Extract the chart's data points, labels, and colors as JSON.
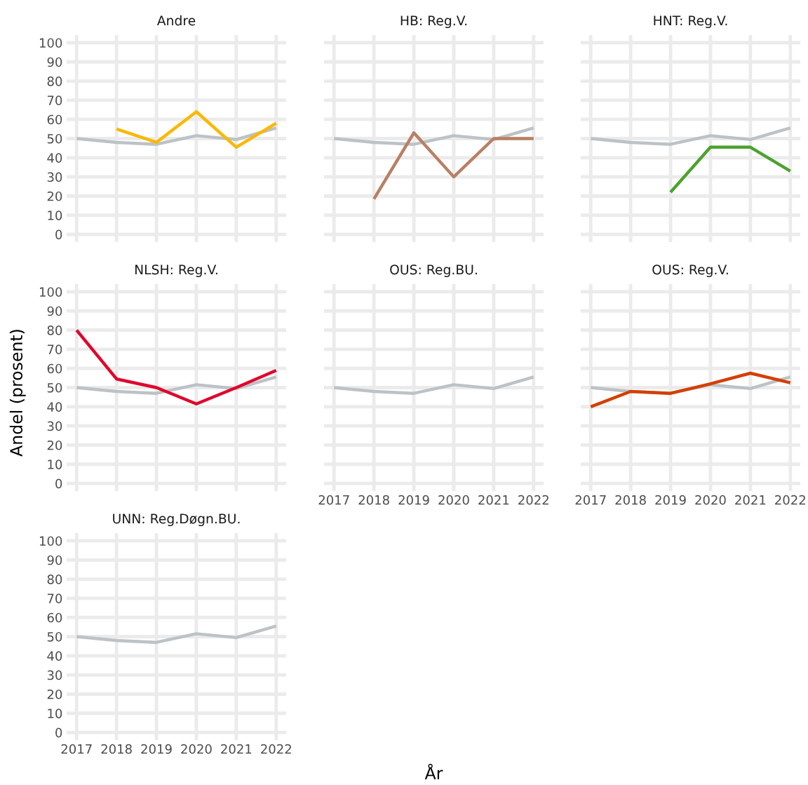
{
  "chart_data": [
    {
      "type": "line",
      "title": "Andre",
      "x": [
        2017,
        2018,
        2019,
        2020,
        2021,
        2022
      ],
      "xlim": [
        2016.75,
        2022.25
      ],
      "xticks": [
        2017,
        2018,
        2019,
        2020,
        2021,
        2022
      ],
      "ylim": [
        -4,
        104
      ],
      "yticks": [
        0,
        10,
        20,
        30,
        40,
        50,
        60,
        70,
        80,
        90,
        100
      ],
      "grid": true,
      "tick_labels": "y",
      "series": [
        {
          "color": "#bcc2c6",
          "values": [
            50,
            48,
            47,
            51.5,
            49.5,
            55.5
          ]
        },
        {
          "color": "#fbb800",
          "values": [
            null,
            55,
            48,
            64,
            45.5,
            58
          ]
        }
      ]
    },
    {
      "type": "line",
      "title": "HB: Reg.V.",
      "x": [
        2017,
        2018,
        2019,
        2020,
        2021,
        2022
      ],
      "xlim": [
        2016.75,
        2022.25
      ],
      "xticks": [
        2017,
        2018,
        2019,
        2020,
        2021,
        2022
      ],
      "ylim": [
        -4,
        104
      ],
      "yticks": [
        0,
        10,
        20,
        30,
        40,
        50,
        60,
        70,
        80,
        90,
        100
      ],
      "grid": true,
      "tick_labels": false,
      "series": [
        {
          "color": "#bcc2c6",
          "values": [
            50,
            48,
            47,
            51.5,
            49.5,
            55.5
          ]
        },
        {
          "color": "#b97f64",
          "values": [
            null,
            18.5,
            53,
            30,
            50,
            50
          ]
        }
      ]
    },
    {
      "type": "line",
      "title": "HNT: Reg.V.",
      "x": [
        2017,
        2018,
        2019,
        2020,
        2021,
        2022
      ],
      "xlim": [
        2016.75,
        2022.25
      ],
      "xticks": [
        2017,
        2018,
        2019,
        2020,
        2021,
        2022
      ],
      "ylim": [
        -4,
        104
      ],
      "yticks": [
        0,
        10,
        20,
        30,
        40,
        50,
        60,
        70,
        80,
        90,
        100
      ],
      "grid": true,
      "tick_labels": false,
      "series": [
        {
          "color": "#bcc2c6",
          "values": [
            50,
            48,
            47,
            51.5,
            49.5,
            55.5
          ]
        },
        {
          "color": "#4ca22e",
          "values": [
            null,
            null,
            22,
            45.5,
            45.5,
            33
          ]
        }
      ]
    },
    {
      "type": "line",
      "title": "NLSH: Reg.V.",
      "ylabel": "Andel (prosent)",
      "x": [
        2017,
        2018,
        2019,
        2020,
        2021,
        2022
      ],
      "xlim": [
        2016.75,
        2022.25
      ],
      "xticks": [
        2017,
        2018,
        2019,
        2020,
        2021,
        2022
      ],
      "ylim": [
        -4,
        104
      ],
      "yticks": [
        0,
        10,
        20,
        30,
        40,
        50,
        60,
        70,
        80,
        90,
        100
      ],
      "grid": true,
      "tick_labels": "y",
      "series": [
        {
          "color": "#bcc2c6",
          "values": [
            50,
            48,
            47,
            51.5,
            49.5,
            55.5
          ]
        },
        {
          "color": "#e0062d",
          "values": [
            80,
            54.5,
            50,
            41.5,
            50,
            59
          ]
        }
      ]
    },
    {
      "type": "line",
      "title": "OUS: Reg.BU.",
      "xlabel": "År",
      "x": [
        2017,
        2018,
        2019,
        2020,
        2021,
        2022
      ],
      "xlim": [
        2016.75,
        2022.25
      ],
      "xticks": [
        2017,
        2018,
        2019,
        2020,
        2021,
        2022
      ],
      "ylim": [
        -4,
        104
      ],
      "yticks": [
        0,
        10,
        20,
        30,
        40,
        50,
        60,
        70,
        80,
        90,
        100
      ],
      "grid": true,
      "tick_labels": "x",
      "series": [
        {
          "color": "#bcc2c6",
          "values": [
            50,
            48,
            47,
            51.5,
            49.5,
            55.5
          ]
        }
      ]
    },
    {
      "type": "line",
      "title": "OUS: Reg.V.",
      "x": [
        2017,
        2018,
        2019,
        2020,
        2021,
        2022
      ],
      "xlim": [
        2016.75,
        2022.25
      ],
      "xticks": [
        2017,
        2018,
        2019,
        2020,
        2021,
        2022
      ],
      "ylim": [
        -4,
        104
      ],
      "yticks": [
        0,
        10,
        20,
        30,
        40,
        50,
        60,
        70,
        80,
        90,
        100
      ],
      "grid": true,
      "tick_labels": "x",
      "series": [
        {
          "color": "#bcc2c6",
          "values": [
            50,
            48,
            47,
            51.5,
            49.5,
            55.5
          ]
        },
        {
          "color": "#d43f00",
          "values": [
            40,
            48,
            47,
            52,
            57.5,
            52.5
          ]
        }
      ]
    },
    {
      "type": "line",
      "title": "UNN: Reg.Døgn.BU.",
      "x": [
        2017,
        2018,
        2019,
        2020,
        2021,
        2022
      ],
      "xlim": [
        2016.75,
        2022.25
      ],
      "xticks": [
        2017,
        2018,
        2019,
        2020,
        2021,
        2022
      ],
      "ylim": [
        -4,
        104
      ],
      "yticks": [
        0,
        10,
        20,
        30,
        40,
        50,
        60,
        70,
        80,
        90,
        100
      ],
      "grid": true,
      "series": [
        {
          "color": "#bcc2c6",
          "values": [
            50,
            48,
            47,
            51.5,
            49.5,
            55.5
          ]
        }
      ]
    }
  ]
}
